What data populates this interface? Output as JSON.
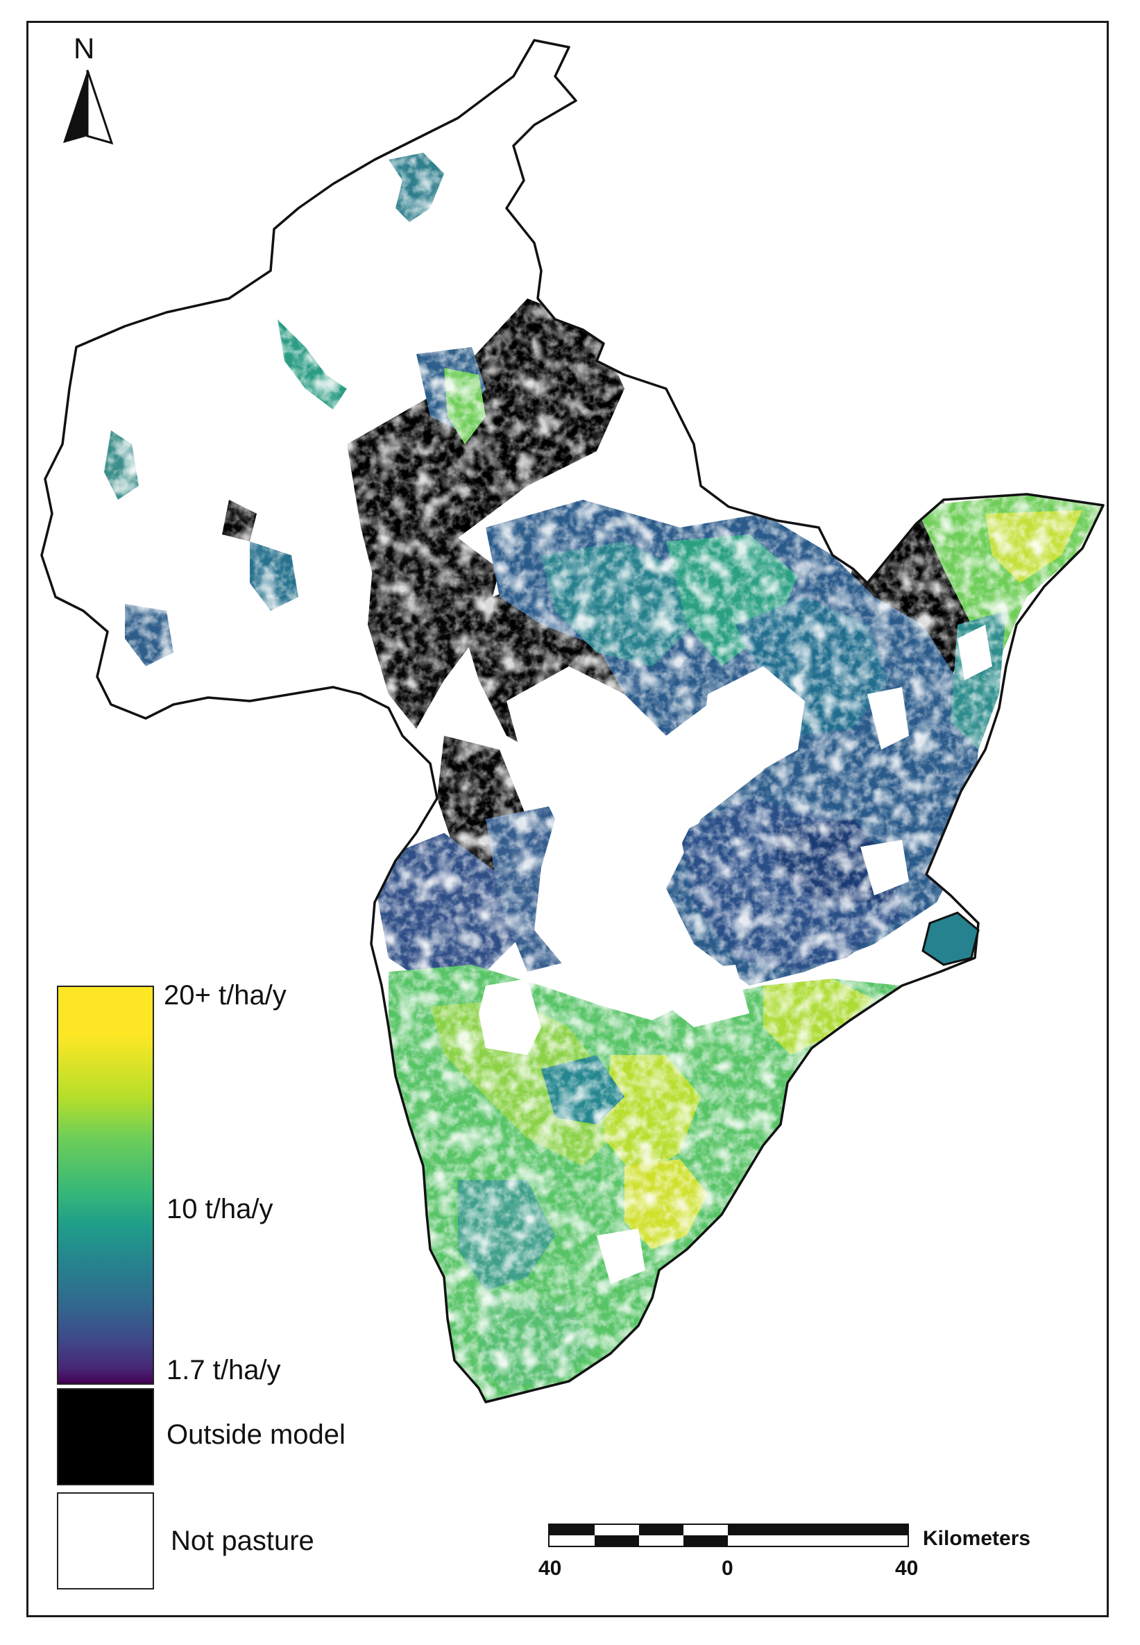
{
  "north_arrow": {
    "letter": "N",
    "icon": "north-arrow-icon"
  },
  "legend": {
    "ramp_top_label": "20+ t/ha/y",
    "ramp_mid_label": "10 t/ha/y",
    "ramp_bottom_label": "1.7 t/ha/y",
    "outside_model_label": "Outside model",
    "not_pasture_label": "Not pasture",
    "colors": {
      "ramp": [
        "#fde725",
        "#b5de2b",
        "#6ece58",
        "#35b779",
        "#1f9e89",
        "#26828e",
        "#31688e",
        "#3e4989",
        "#482878",
        "#440154"
      ],
      "outside_model": "#000000",
      "not_pasture": "#ffffff"
    }
  },
  "scale_bar": {
    "unit": "Kilometers",
    "ticks": [
      "40",
      "0",
      "40"
    ]
  }
}
